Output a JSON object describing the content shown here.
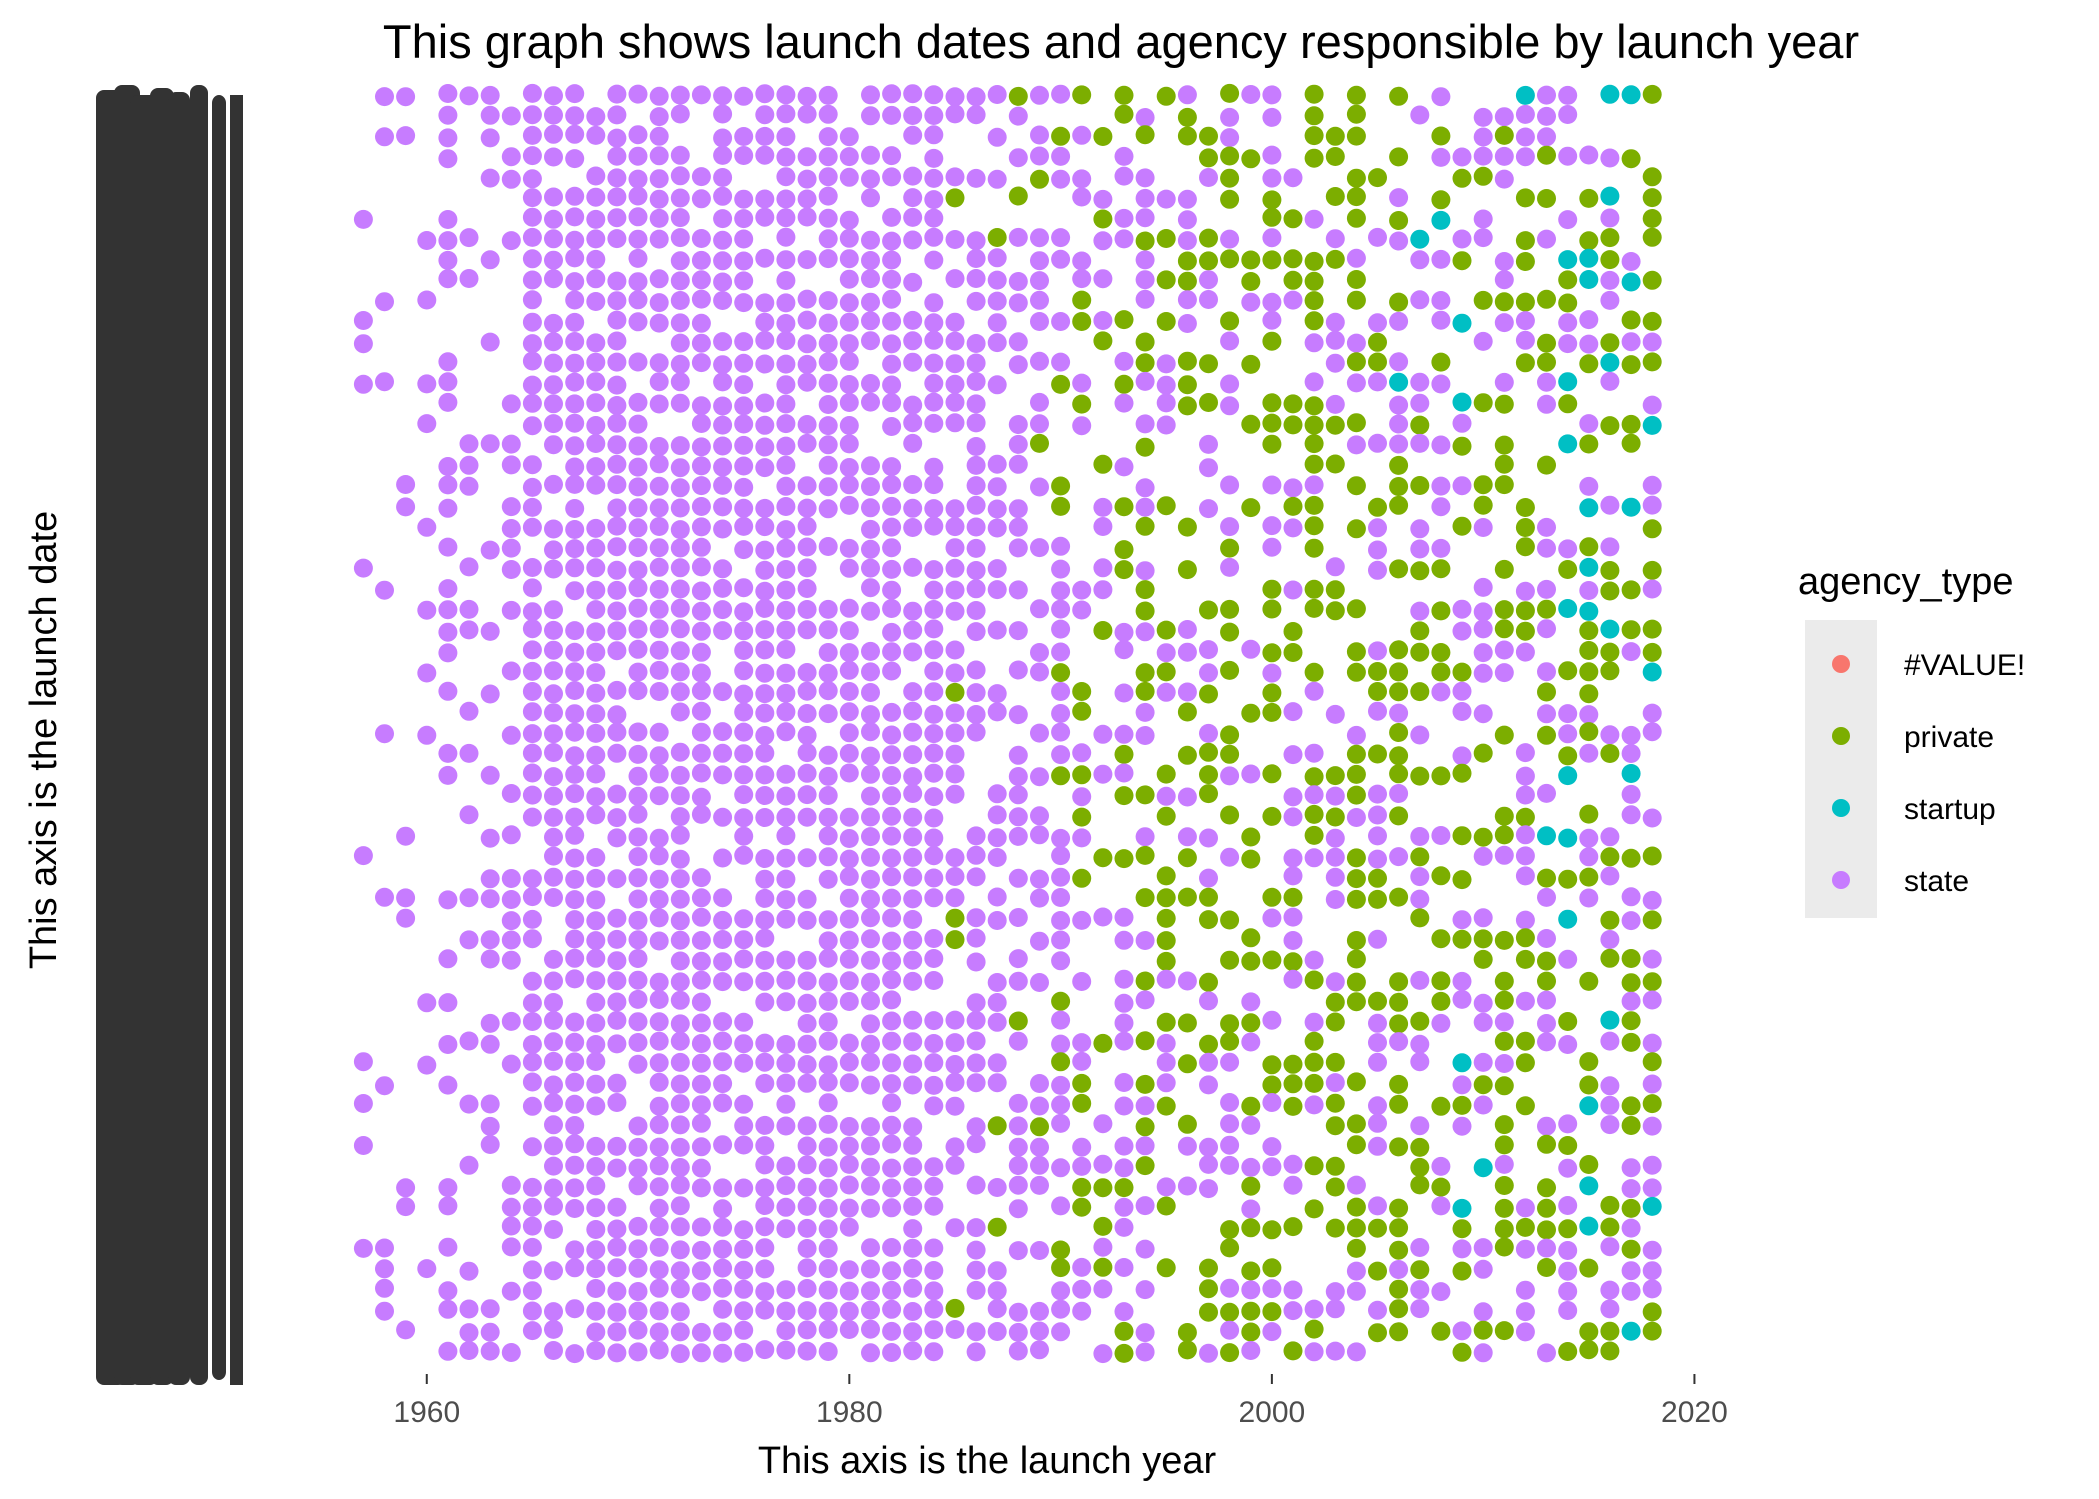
{
  "chart_data": {
    "type": "scatter",
    "title": "This graph shows launch dates and agency responsible by launch year",
    "xlabel": "This axis is the launch year",
    "ylabel": "This axis is the launch date",
    "xlim": [
      1954,
      2020.5
    ],
    "x_ticks": [
      1960,
      1980,
      2000,
      2020
    ],
    "grid": false,
    "legend": {
      "title": "agency_type",
      "placement": "right",
      "entries": [
        "#VALUE!",
        "private",
        "startup",
        "state"
      ]
    },
    "y_axis_note": "Y axis has thousands of overlapping, illegible date tick labels (categorical launch dates)",
    "series": [
      {
        "name": "#VALUE!",
        "color": "#F8766D",
        "x": []
      },
      {
        "name": "private",
        "color": "#7CAE00",
        "x_years_present": [
          1985,
          1987,
          1988,
          1989,
          1990,
          1991,
          1992,
          1993,
          1994,
          1995,
          1996,
          1997,
          1998,
          1999,
          2000,
          2001,
          2002,
          2003,
          2004,
          2005,
          2006,
          2007,
          2008,
          2009,
          2010,
          2011,
          2012,
          2013,
          2014,
          2015,
          2016,
          2017,
          2018
        ]
      },
      {
        "name": "startup",
        "color": "#00BFC4",
        "x_years_present": [
          2006,
          2007,
          2008,
          2009,
          2010,
          2012,
          2013,
          2014,
          2015,
          2016,
          2017,
          2018
        ]
      },
      {
        "name": "state",
        "color": "#C77CFF",
        "x_years_present": [
          1957,
          1958,
          1959,
          1960,
          1961,
          1962,
          1963,
          1964,
          1965,
          1966,
          1967,
          1968,
          1969,
          1970,
          1971,
          1972,
          1973,
          1974,
          1975,
          1976,
          1977,
          1978,
          1979,
          1980,
          1981,
          1982,
          1983,
          1984,
          1985,
          1986,
          1987,
          1988,
          1989,
          1990,
          1991,
          1992,
          1993,
          1994,
          1995,
          1996,
          1997,
          1998,
          1999,
          2000,
          2001,
          2002,
          2003,
          2004,
          2005,
          2006,
          2007,
          2008,
          2009,
          2010,
          2011,
          2012,
          2013,
          2014,
          2015,
          2016,
          2017,
          2018
        ]
      }
    ]
  },
  "colors": {
    "value_error": "#F8766D",
    "private": "#7CAE00",
    "startup": "#00BFC4",
    "state": "#C77CFF",
    "legend_bg": "#EBEBEB",
    "tick_label": "#4D4D4D",
    "y_tick_blob": "#333333"
  }
}
